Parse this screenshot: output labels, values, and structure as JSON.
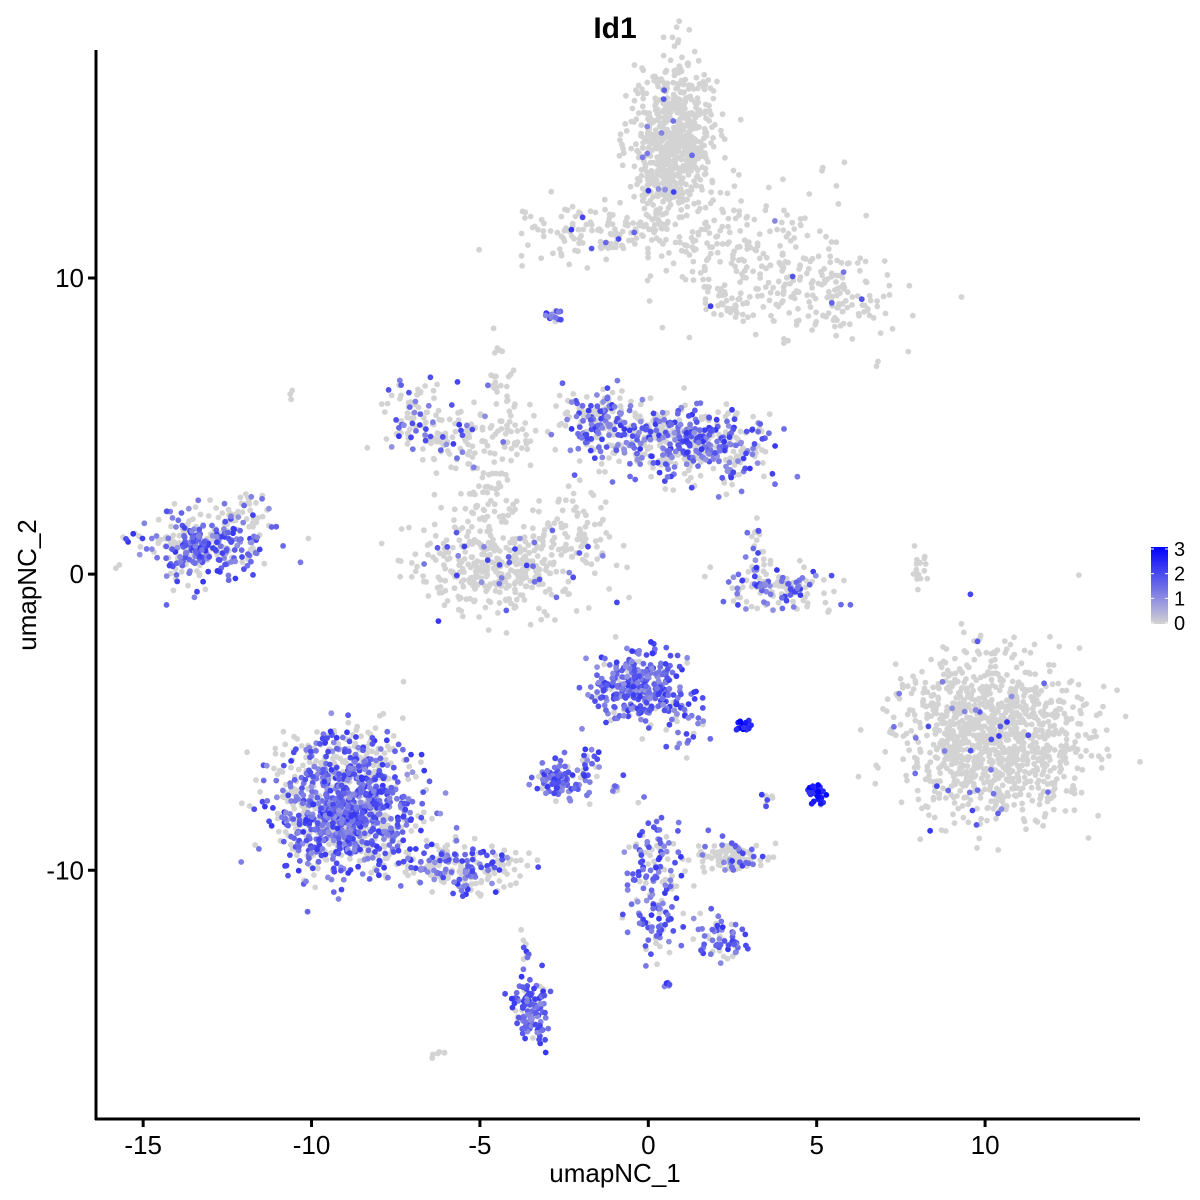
{
  "chart_data": {
    "type": "scatter",
    "title": "Id1",
    "xlabel": "umapNC_1",
    "ylabel": "umapNC_2",
    "xlim": [
      -16.4,
      14.6
    ],
    "ylim": [
      -18.4,
      17.7
    ],
    "x_ticks": [
      -15,
      -10,
      -5,
      0,
      5,
      10
    ],
    "x_tick_labels": [
      "-15",
      "-10",
      "-5",
      "0",
      "5",
      "10"
    ],
    "y_ticks": [
      -10,
      0,
      10
    ],
    "y_tick_labels": [
      "-10",
      "0",
      "10"
    ],
    "grid": false,
    "legend": {
      "placement": "right",
      "type": "colorbar",
      "ticks": [
        0,
        1,
        2,
        3
      ],
      "tick_labels": [
        "0",
        "1",
        "2",
        "3"
      ],
      "low_color": "#d3d3d3",
      "high_color": "#0000ff"
    },
    "color_low": "#d3d3d3",
    "color_high": "#0000ff",
    "clusters": [
      {
        "cx": 0.7,
        "cy": 14.6,
        "sx": 0.6,
        "sy": 1.3,
        "n": 700,
        "expr": 0.02
      },
      {
        "cx": -1.2,
        "cy": 11.5,
        "sx": 1.5,
        "sy": 0.5,
        "n": 140,
        "expr": 0.03
      },
      {
        "cx": 2.8,
        "cy": 11.0,
        "sx": 1.5,
        "sy": 1.0,
        "n": 180,
        "expr": 0.03
      },
      {
        "cx": 5.0,
        "cy": 9.3,
        "sx": 1.2,
        "sy": 0.7,
        "n": 160,
        "expr": 0.02
      },
      {
        "cx": 2.3,
        "cy": 9.2,
        "sx": 0.4,
        "sy": 0.3,
        "n": 30,
        "expr": 0.02
      },
      {
        "cx": -2.8,
        "cy": 8.6,
        "sx": 0.15,
        "sy": 0.15,
        "n": 15,
        "expr": 0.9
      },
      {
        "cx": -6.8,
        "cy": 5.3,
        "sx": 0.5,
        "sy": 0.6,
        "n": 80,
        "expr": 0.35
      },
      {
        "cx": -5.1,
        "cy": 4.6,
        "sx": 1.0,
        "sy": 0.5,
        "n": 110,
        "expr": 0.08
      },
      {
        "cx": -4.3,
        "cy": 6.0,
        "sx": 0.2,
        "sy": 1.1,
        "n": 40,
        "expr": 0.02
      },
      {
        "cx": -4.3,
        "cy": 0.3,
        "sx": 1.3,
        "sy": 0.8,
        "n": 420,
        "expr": 0.06
      },
      {
        "cx": -4.7,
        "cy": 2.4,
        "sx": 0.4,
        "sy": 0.8,
        "n": 50,
        "expr": 0.03
      },
      {
        "cx": -1.5,
        "cy": 5.3,
        "sx": 0.5,
        "sy": 0.5,
        "n": 120,
        "expr": 0.55
      },
      {
        "cx": 0.5,
        "cy": 4.6,
        "sx": 1.2,
        "sy": 0.6,
        "n": 320,
        "expr": 0.5
      },
      {
        "cx": 2.0,
        "cy": 4.1,
        "sx": 0.8,
        "sy": 0.6,
        "n": 180,
        "expr": 0.5
      },
      {
        "cx": -2.1,
        "cy": 2.5,
        "sx": 0.4,
        "sy": 0.8,
        "n": 30,
        "expr": 0.05
      },
      {
        "cx": -2.0,
        "cy": 1.0,
        "sx": 0.6,
        "sy": 0.3,
        "n": 20,
        "expr": 0.05
      },
      {
        "cx": 3.8,
        "cy": -0.5,
        "sx": 0.8,
        "sy": 0.4,
        "n": 130,
        "expr": 0.4
      },
      {
        "cx": 3.2,
        "cy": 0.7,
        "sx": 0.2,
        "sy": 0.7,
        "n": 25,
        "expr": 0.4
      },
      {
        "cx": 8.1,
        "cy": 0.3,
        "sx": 0.15,
        "sy": 0.5,
        "n": 18,
        "expr": 0.02
      },
      {
        "cx": -13.3,
        "cy": 1.0,
        "sx": 0.9,
        "sy": 0.6,
        "n": 340,
        "expr": 0.55
      },
      {
        "cx": -11.9,
        "cy": 2.0,
        "sx": 0.3,
        "sy": 0.5,
        "n": 30,
        "expr": 0.4
      },
      {
        "cx": 10.3,
        "cy": -5.6,
        "sx": 1.3,
        "sy": 1.3,
        "n": 1150,
        "expr": 0.02
      },
      {
        "cx": -0.3,
        "cy": -3.8,
        "sx": 0.6,
        "sy": 0.6,
        "n": 320,
        "expr": 0.85
      },
      {
        "cx": 1.0,
        "cy": -4.9,
        "sx": 0.35,
        "sy": 0.5,
        "n": 40,
        "expr": 0.7
      },
      {
        "cx": -9.0,
        "cy": -8.0,
        "sx": 1.0,
        "sy": 1.0,
        "n": 1100,
        "expr": 0.6
      },
      {
        "cx": -8.8,
        "cy": -6.2,
        "sx": 0.8,
        "sy": 0.6,
        "n": 130,
        "expr": 0.4
      },
      {
        "cx": -5.5,
        "cy": -9.9,
        "sx": 0.9,
        "sy": 0.4,
        "n": 200,
        "expr": 0.45
      },
      {
        "cx": -3.7,
        "cy": -12.5,
        "sx": 0.12,
        "sy": 0.4,
        "n": 10,
        "expr": 0.35
      },
      {
        "cx": -2.6,
        "cy": -6.9,
        "sx": 0.4,
        "sy": 0.3,
        "n": 110,
        "expr": 0.8
      },
      {
        "cx": -1.8,
        "cy": -6.3,
        "sx": 0.3,
        "sy": 0.5,
        "n": 20,
        "expr": 0.6
      },
      {
        "cx": 2.8,
        "cy": -5.1,
        "sx": 0.12,
        "sy": 0.1,
        "n": 18,
        "expr": 1.0
      },
      {
        "cx": 5.0,
        "cy": -7.4,
        "sx": 0.12,
        "sy": 0.2,
        "n": 30,
        "expr": 0.95
      },
      {
        "cx": 0.1,
        "cy": -10.6,
        "sx": 0.4,
        "sy": 1.1,
        "n": 150,
        "expr": 0.7
      },
      {
        "cx": 2.2,
        "cy": -12.4,
        "sx": 0.4,
        "sy": 0.3,
        "n": 55,
        "expr": 0.75
      },
      {
        "cx": 1.2,
        "cy": -11.9,
        "sx": 0.6,
        "sy": 0.25,
        "n": 15,
        "expr": 0.5
      },
      {
        "cx": 2.4,
        "cy": -9.5,
        "sx": 0.55,
        "sy": 0.3,
        "n": 110,
        "expr": 0.2
      },
      {
        "cx": -3.5,
        "cy": -14.7,
        "sx": 0.25,
        "sy": 0.6,
        "n": 120,
        "expr": 0.85
      },
      {
        "cx": -0.9,
        "cy": -7.2,
        "sx": 0.1,
        "sy": 0.15,
        "n": 8,
        "expr": 0.5
      },
      {
        "cx": 3.5,
        "cy": -7.6,
        "sx": 0.1,
        "sy": 0.15,
        "n": 8,
        "expr": 0.3
      },
      {
        "cx": 0.6,
        "cy": -13.9,
        "sx": 0.08,
        "sy": 0.08,
        "n": 5,
        "expr": 0.7
      },
      {
        "cx": -6.1,
        "cy": -16.2,
        "sx": 0.15,
        "sy": 0.15,
        "n": 6,
        "expr": 0.05
      },
      {
        "cx": -10.7,
        "cy": 6.1,
        "sx": 0.1,
        "sy": 0.1,
        "n": 3,
        "expr": 0.0
      },
      {
        "cx": 6.8,
        "cy": 7.1,
        "sx": 0.05,
        "sy": 0.05,
        "n": 2,
        "expr": 0.0
      }
    ]
  }
}
